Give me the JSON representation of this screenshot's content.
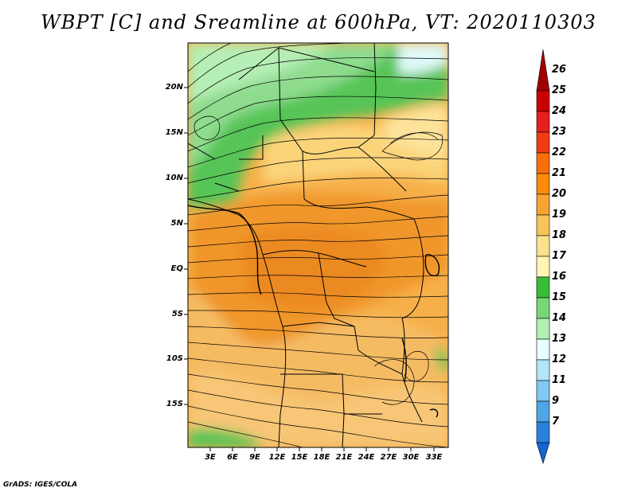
{
  "title": "WBPT [C] and Sreamline at 600hPa, VT: 2020110303",
  "footer": "GrADS: IGES/COLA",
  "map": {
    "lat_labels": [
      "20N",
      "15N",
      "10N",
      "5N",
      "EQ",
      "5S",
      "10S",
      "15S"
    ],
    "lon_labels": [
      "3E",
      "6E",
      "9E",
      "12E",
      "15E",
      "18E",
      "21E",
      "24E",
      "27E",
      "30E",
      "33E"
    ],
    "colorbar_labels": [
      "26",
      "25",
      "24",
      "23",
      "22",
      "21",
      "20",
      "19",
      "18",
      "17",
      "16",
      "15",
      "14",
      "13",
      "12",
      "11",
      "9",
      "7"
    ],
    "colorbar_colors": [
      "#a00000",
      "#c80000",
      "#e61e1e",
      "#f03c14",
      "#fa6e0a",
      "#fa8c0a",
      "#f5a532",
      "#f8c35a",
      "#fce18c",
      "#fff5b4",
      "#37be37",
      "#78d778",
      "#b4f0b4",
      "#e6ffff",
      "#b4e6fa",
      "#82c8f0",
      "#50a5e6",
      "#2882dc",
      "#1464d2"
    ]
  }
}
